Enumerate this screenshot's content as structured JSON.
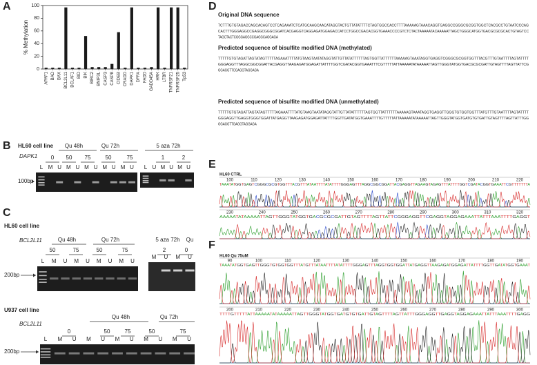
{
  "chart_data": {
    "type": "bar",
    "panel": "A",
    "y_label": "% Methylation",
    "categories": [
      "APAF1",
      "BAD",
      "BAX",
      "BCL2L11",
      "BCLAF1",
      "BID",
      "BIK",
      "BIRC2",
      "BNIP3L",
      "CASP3",
      "CASP8",
      "CIDEB",
      "CRADD",
      "DAPK1",
      "DFFA",
      "FADD",
      "GADD45A",
      "HRK",
      "LTBR",
      "TNFRSF21",
      "TNFRSF25",
      "Tp53"
    ],
    "values": [
      2,
      2,
      2,
      97,
      2,
      2,
      52,
      3,
      3,
      3,
      8,
      58,
      2,
      97,
      2,
      2,
      3,
      97,
      2,
      97,
      97,
      2
    ],
    "color": "#1a1a1a",
    "ylim": [
      0,
      100
    ],
    "yticks": [
      0,
      20,
      40,
      60,
      80,
      100
    ]
  },
  "panel_b": {
    "panel": "B",
    "cell_line": "HL60 cell line",
    "gene": "DAPK1",
    "groups": [
      "Qu 48h",
      "Qu 72h",
      "5 aza 72h"
    ],
    "doses": [
      "0",
      "50",
      "75",
      "50",
      "75",
      "1",
      "2"
    ],
    "gels": [
      {
        "lanes": [
          "L",
          "M",
          "U",
          "M",
          "U",
          "M",
          "U",
          "M",
          "U",
          "M",
          "U"
        ]
      },
      {
        "lanes": [
          "L",
          "U",
          "M",
          "U",
          "M",
          "U"
        ]
      }
    ],
    "marker": "100bp"
  },
  "panel_c": {
    "panel": "C",
    "hl60": {
      "cell_line": "HL60 cell line",
      "gene": "BCL2L11",
      "groups": [
        "Qu 48h",
        "Qu 72h",
        "5 aza 72h",
        "Qu"
      ],
      "doses": [
        "50",
        "75",
        "50",
        "75",
        "2",
        "0"
      ],
      "gels": [
        {
          "lanes": [
            "L",
            "M",
            "U",
            "M",
            "U",
            "M",
            "U",
            "M",
            "U"
          ]
        },
        {
          "lanes": [
            "M",
            "U",
            "M",
            "U"
          ]
        }
      ],
      "marker": "200bp"
    },
    "u937": {
      "cell_line": "U937 cell line",
      "gene": "BCL2L11",
      "groups": [
        "Qu 48h",
        "Qu 72h"
      ],
      "doses": [
        "0",
        "50",
        "75",
        "50",
        "75"
      ],
      "gels": [
        {
          "lanes": [
            "L",
            "M",
            "U",
            "M",
            "U",
            "M",
            "U",
            "M",
            "U",
            "M",
            "U"
          ]
        }
      ],
      "marker": "200bp"
    }
  },
  "panel_d": {
    "panel": "D",
    "sections": [
      {
        "heading": "Original DNA sequence",
        "lines": [
          "TCTTTGTGTAGACCAGCACAGTCCTCAGAAATCTCATGCAAGCAACATAGGTACTGTTATATTTTCTAGTGGCCACCTTTTAAAAAGTAAACAGGTGAGGCCGGGCGCGGTGGCTCACGCCTGTAATCCCAG",
          "CACTTTGGGAGGCCGAGGCGGGCGGATCACGAGGTCAGGAGATGGAGACCATCCTGGCCGACACGGTGAAACCCCGTCTCTACTAAAAATACAAAAATTAGCTGGGCATGGTGACGCGCGCACTGTAGTCC",
          "TAGCTACTCGGGAGGCCGAGGCAGGAGA"
        ]
      },
      {
        "heading": "Predicted sequence of bisulfite modified DNA (methylated)",
        "lines": [
          "TTTTTGTGTAGATTAGTATAGTTTTTAGAAATTTTATGTAAGTAATATAGGTATTGTTATATTTTTTAGTGGTTATTTTTTAAAAAGTAAATAGGTGAGGTCGGGCGCGGTGGTTTACGTTTGTAATTTTAGTATTTT",
          "GGGAGGTTTAGGCGGCGGATTACGAGGTTAAGAGATGGAGATTATTTTGGTCGATACGGTGAAATTTCGTTTTTATTAAAAATATAAAAATTAGTTGGGTATGGTGACGCGCGATTGTAGTTTTAGTTATTCG",
          "GGAGGTTCGAGGTAGGAGA"
        ]
      },
      {
        "heading": "Predicted sequence of bisulfite modified DNA (unmethylated)",
        "lines": [
          "TTTTTGTGTAGATTAGTATAGTTTTTAGAAATTTTATGTAAGTAATATAGGTATTGTTATATTTTTTAGTGGTTATTTTTTAAAAAGTAAATAGGTGAGGTTGGGTGTGGTGGTTTATGTTTGTAATTTTAGTATTTT",
          "GGGAGGTTGAGGTGGGTGGATTATGAGGTTAAGAGATGGAGATTATTTTGGTTGATATGGTGAAATTTTGTTTTTATTAAAAATATAAAAATTAGTTGGGTATGGTGATGTGTGATTGTAGTTTTAGTTATTTGG",
          "GGAGGTTGAGGTAGGAGA"
        ]
      }
    ]
  },
  "panel_e": {
    "panel": "E",
    "sample": "HL60 CTRL",
    "rows": [
      {
        "positions": [
          100,
          110,
          120,
          130,
          140,
          150,
          160,
          170,
          180,
          190,
          200,
          210,
          220
        ],
        "bases": "TAAATATGGTGAGTCGGGCGCGTGGTTTACGTTTATAATTTTATATTTTGGGAGTTTAGGCGGCGGATTACGAGGTTAGAAGTAGAGTTTATTTTGGTCGATACGGTGAAATTCGTTTTTTTA"
      },
      {
        "positions": [
          230,
          240,
          250,
          260,
          270,
          280,
          290,
          300,
          310,
          320
        ],
        "bases": "AAAAATATAAAAATTAGTTGGGTATGGTGACGCGCGATTGTAGTTTTAGTTATTCGGGAGGTTCGAGGTAGGAGAAATTATTTAAATTTTGAGGT"
      }
    ]
  },
  "panel_f": {
    "panel": "F",
    "sample": "HL60 Qu 75uM",
    "rows": [
      {
        "positions": [
          90,
          100,
          110,
          120,
          130,
          140,
          150,
          160,
          170,
          180,
          190
        ],
        "bases": "TAAATATGGTGAGTTGGGTGTGGTGGTTTATGTTTATAATTTTATATTTTGGGAGTTTAGGTGGTGGATTATGAGGTTAAGAGATGGAGATTATTTTGGTTGATATGGTGAAAT"
      },
      {
        "positions": [
          200,
          210,
          220,
          230,
          240,
          250,
          260,
          270,
          280,
          290,
          300
        ],
        "bases": "TTTTGTTTTTATTAAAAATATAAAAATTAGTTGGGTATGGTGATGTGTGATTGTAGTTTTAGTTATTTGGGAGGTTGAGGTAGGAGAAATTATTTAAATTTTGAGG"
      }
    ]
  }
}
